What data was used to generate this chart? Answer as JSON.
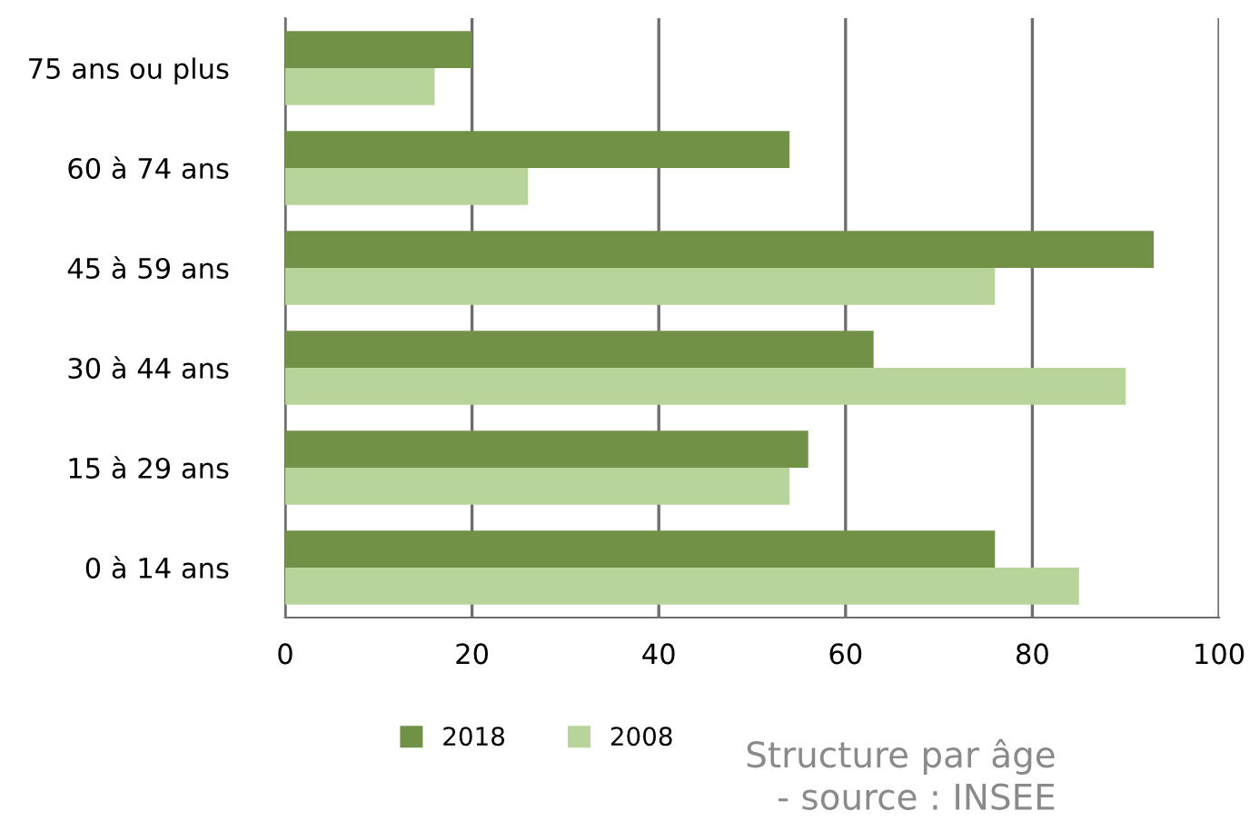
{
  "chart_data": {
    "type": "bar",
    "orientation": "horizontal",
    "categories": [
      "75 ans ou plus",
      "60 à 74 ans",
      "45 à 59 ans",
      "30 à 44 ans",
      "15 à 29 ans",
      "0 à 14 ans"
    ],
    "series": [
      {
        "name": "2018",
        "color": "#719246",
        "values": [
          20,
          54,
          93,
          63,
          56,
          76
        ]
      },
      {
        "name": "2008",
        "color": "#b8d49a",
        "values": [
          16,
          26,
          76,
          90,
          54,
          85
        ]
      }
    ],
    "xlim": [
      0,
      100
    ],
    "xticks": [
      0,
      20,
      40,
      60,
      80,
      100
    ],
    "grid": "x",
    "legend": "bottom",
    "annotations": [
      "Structure par âge\n - source : INSEE"
    ]
  }
}
